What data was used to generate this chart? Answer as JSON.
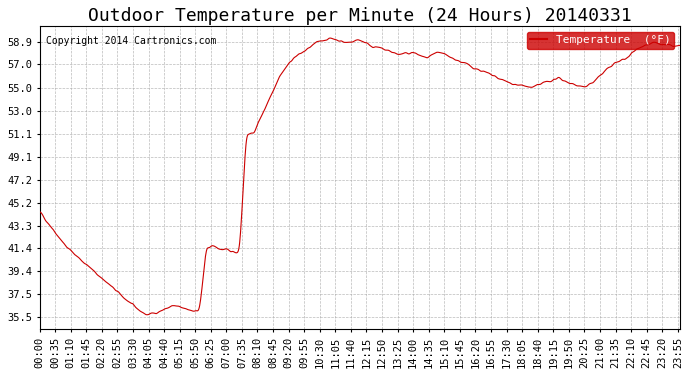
{
  "title": "Outdoor Temperature per Minute (24 Hours) 20140331",
  "copyright": "Copyright 2014 Cartronics.com",
  "legend_label": "Temperature  (°F)",
  "legend_bg": "#cc0000",
  "legend_fg": "#ffffff",
  "line_color": "#cc0000",
  "bg_color": "#ffffff",
  "grid_color": "#aaaaaa",
  "yticks": [
    35.5,
    37.5,
    39.4,
    41.4,
    43.3,
    45.2,
    47.2,
    49.1,
    51.1,
    53.0,
    55.0,
    57.0,
    58.9
  ],
  "ylim": [
    34.5,
    60.2
  ],
  "xtick_labels": [
    "00:00",
    "00:35",
    "01:10",
    "01:45",
    "02:20",
    "02:55",
    "03:30",
    "04:05",
    "04:40",
    "05:15",
    "05:50",
    "06:25",
    "07:00",
    "07:35",
    "08:10",
    "08:45",
    "09:20",
    "09:55",
    "10:30",
    "11:05",
    "11:40",
    "12:15",
    "12:50",
    "13:25",
    "14:00",
    "14:35",
    "15:10",
    "15:45",
    "16:20",
    "16:55",
    "17:30",
    "18:05",
    "18:40",
    "19:15",
    "19:50",
    "20:25",
    "21:00",
    "21:35",
    "22:10",
    "22:45",
    "23:20",
    "23:55"
  ],
  "title_fontsize": 13,
  "axis_fontsize": 7.5,
  "copyright_fontsize": 7
}
